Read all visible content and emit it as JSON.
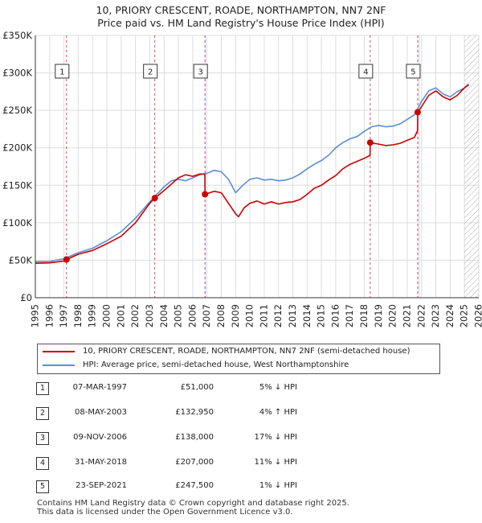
{
  "title_line1": "10, PRIORY CRESCENT, ROADE, NORTHAMPTON, NN7 2NF",
  "title_line2": "Price paid vs. HM Land Registry's House Price Index (HPI)",
  "legend": {
    "property_label": "10, PRIORY CRESCENT, ROADE, NORTHAMPTON, NN7 2NF (semi-detached house)",
    "hpi_label": "HPI: Average price, semi-detached house, West Northamptonshire"
  },
  "colors": {
    "property": "#cc0000",
    "hpi": "#5b8ed6",
    "marker": "#cc0000",
    "grid": "#dddddd",
    "highlight": "#e6eef8"
  },
  "sales": [
    {
      "num": "1",
      "date": "07-MAR-1997",
      "price": "£51,000",
      "hpi": "5% ↓ HPI"
    },
    {
      "num": "2",
      "date": "08-MAY-2003",
      "price": "£132,950",
      "hpi": "4% ↑ HPI"
    },
    {
      "num": "3",
      "date": "09-NOV-2006",
      "price": "£138,000",
      "hpi": "17% ↓ HPI"
    },
    {
      "num": "4",
      "date": "31-MAY-2018",
      "price": "£207,000",
      "hpi": "11% ↓ HPI"
    },
    {
      "num": "5",
      "date": "23-SEP-2021",
      "price": "£247,500",
      "hpi": "1% ↓ HPI"
    }
  ],
  "footer_line1": "Contains HM Land Registry data © Crown copyright and database right 2025.",
  "footer_line2": "This data is licensed under the Open Government Licence v3.0.",
  "chart_data": {
    "type": "line",
    "title": "10, PRIORY CRESCENT, ROADE, NORTHAMPTON, NN7 2NF",
    "subtitle": "Price paid vs. HM Land Registry's House Price Index (HPI)",
    "xlabel": "",
    "ylabel": "",
    "xlim": [
      1995,
      2026
    ],
    "ylim": [
      0,
      350000
    ],
    "grid": true,
    "legend_position": "bottom",
    "y_ticks": [
      {
        "value": 0,
        "label": "£0"
      },
      {
        "value": 50000,
        "label": "£50K"
      },
      {
        "value": 100000,
        "label": "£100K"
      },
      {
        "value": 150000,
        "label": "£150K"
      },
      {
        "value": 200000,
        "label": "£200K"
      },
      {
        "value": 250000,
        "label": "£250K"
      },
      {
        "value": 300000,
        "label": "£300K"
      },
      {
        "value": 350000,
        "label": "£350K"
      }
    ],
    "x_ticks": [
      1995,
      1996,
      1997,
      1998,
      1999,
      2000,
      2001,
      2002,
      2003,
      2004,
      2005,
      2006,
      2007,
      2008,
      2009,
      2010,
      2011,
      2012,
      2013,
      2014,
      2015,
      2016,
      2017,
      2018,
      2019,
      2020,
      2021,
      2022,
      2023,
      2024,
      2025,
      2026
    ],
    "hatched_from": 2025.0,
    "sale_markers": [
      {
        "label": "1",
        "x": 1997.18,
        "y": 51000
      },
      {
        "label": "2",
        "x": 2003.35,
        "y": 132950
      },
      {
        "label": "3",
        "x": 2006.86,
        "y": 138000
      },
      {
        "label": "4",
        "x": 2018.41,
        "y": 207000
      },
      {
        "label": "5",
        "x": 2021.73,
        "y": 247500
      }
    ],
    "series": [
      {
        "name": "10, PRIORY CRESCENT, ROADE, NORTHAMPTON, NN7 2NF (semi-detached house)",
        "x": [
          1995.0,
          1996.0,
          1997.0,
          1997.18,
          1998.0,
          1999.0,
          2000.0,
          2001.0,
          2002.0,
          2003.0,
          2003.35,
          2004.0,
          2005.0,
          2005.5,
          2006.0,
          2006.5,
          2006.85,
          2006.86,
          2007.5,
          2008.0,
          2008.5,
          2009.0,
          2009.2,
          2009.6,
          2010.0,
          2010.5,
          2011.0,
          2011.5,
          2012.0,
          2012.5,
          2013.0,
          2013.5,
          2014.0,
          2014.5,
          2015.0,
          2015.5,
          2016.0,
          2016.5,
          2017.0,
          2017.5,
          2018.0,
          2018.4,
          2018.41,
          2019.0,
          2019.5,
          2020.0,
          2020.5,
          2021.0,
          2021.5,
          2021.72,
          2021.73,
          2022.0,
          2022.5,
          2023.0,
          2023.5,
          2024.0,
          2024.5,
          2025.0,
          2025.3
        ],
        "values": [
          46000,
          46500,
          49000,
          51000,
          58000,
          63000,
          72000,
          82000,
          100000,
          126000,
          132950,
          143000,
          160000,
          164000,
          162000,
          165000,
          165000,
          138000,
          142000,
          140000,
          126000,
          112000,
          108000,
          120000,
          126000,
          129000,
          125000,
          128000,
          125000,
          127000,
          128000,
          131000,
          138000,
          146000,
          150000,
          157000,
          163000,
          172000,
          178000,
          182000,
          186000,
          190000,
          207000,
          205000,
          203000,
          204000,
          206000,
          210000,
          214000,
          223000,
          247500,
          255000,
          270000,
          276000,
          268000,
          264000,
          270000,
          280000,
          284000
        ]
      },
      {
        "name": "HPI: Average price, semi-detached house, West Northamptonshire",
        "x": [
          1995.0,
          1996.0,
          1997.0,
          1998.0,
          1999.0,
          2000.0,
          2001.0,
          2002.0,
          2003.0,
          2004.0,
          2004.5,
          2005.0,
          2005.5,
          2006.0,
          2006.5,
          2007.0,
          2007.5,
          2008.0,
          2008.5,
          2009.0,
          2009.5,
          2010.0,
          2010.5,
          2011.0,
          2011.5,
          2012.0,
          2012.5,
          2013.0,
          2013.5,
          2014.0,
          2014.5,
          2015.0,
          2015.5,
          2016.0,
          2016.5,
          2017.0,
          2017.5,
          2018.0,
          2018.5,
          2019.0,
          2019.5,
          2020.0,
          2020.5,
          2021.0,
          2021.5,
          2022.0,
          2022.5,
          2023.0,
          2023.5,
          2024.0,
          2024.5,
          2025.0,
          2025.3
        ],
        "values": [
          48000,
          48500,
          52000,
          60000,
          66000,
          76000,
          88000,
          106000,
          128000,
          148000,
          156000,
          158000,
          156000,
          160000,
          164000,
          166000,
          170000,
          168000,
          158000,
          140000,
          150000,
          158000,
          160000,
          157000,
          158000,
          156000,
          157000,
          160000,
          165000,
          172000,
          178000,
          183000,
          190000,
          200000,
          207000,
          212000,
          215000,
          222000,
          228000,
          230000,
          228000,
          229000,
          232000,
          238000,
          244000,
          262000,
          276000,
          280000,
          272000,
          268000,
          275000,
          280000,
          285000
        ]
      }
    ]
  }
}
